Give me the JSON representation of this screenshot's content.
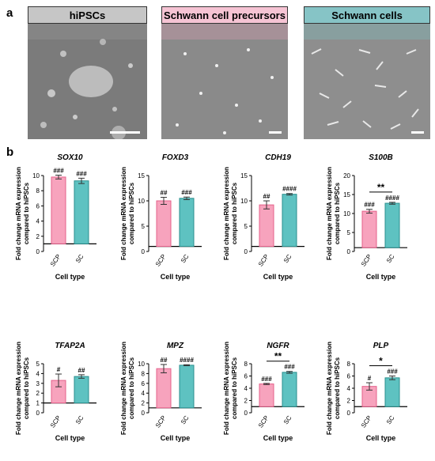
{
  "panel_a_label": "a",
  "panel_b_label": "b",
  "micrographs": [
    {
      "title": "hiPSCs",
      "header_color": "#c6c6c6"
    },
    {
      "title": "Schwann cell precursors",
      "header_color": "#f6c4d4"
    },
    {
      "title": "Schwann cells",
      "header_color": "#86c4c6"
    }
  ],
  "colors": {
    "SCP": "#f7a3bd",
    "SC": "#5ec2c1",
    "SCP_edge": "#e4608a",
    "SC_edge": "#2a8f8e"
  },
  "chart_data": [
    {
      "type": "bar",
      "title": "SOX10",
      "categories": [
        "SCP",
        "SC"
      ],
      "values": [
        9.8,
        9.3
      ],
      "errors": [
        0.25,
        0.35
      ],
      "annotations": [
        "###",
        "###"
      ],
      "ylabel": "Fold change mRNA expression compared to hiPSCs",
      "xlabel": "Cell type",
      "ylim": [
        0,
        10
      ],
      "yticks": [
        0,
        2,
        4,
        6,
        8,
        10
      ],
      "baseline": 1,
      "bracket": null
    },
    {
      "type": "bar",
      "title": "FOXD3",
      "categories": [
        "SCP",
        "SC"
      ],
      "values": [
        10.0,
        10.5
      ],
      "errors": [
        0.7,
        0.25
      ],
      "annotations": [
        "##",
        "###"
      ],
      "ylabel": "Fold change mRNA expression compared to hiPSCs",
      "xlabel": "Cell type",
      "ylim": [
        0,
        15
      ],
      "yticks": [
        0,
        5,
        10,
        15
      ],
      "baseline": 1,
      "bracket": null
    },
    {
      "type": "bar",
      "title": "CDH19",
      "categories": [
        "SCP",
        "SC"
      ],
      "values": [
        9.2,
        11.3
      ],
      "errors": [
        0.8,
        0.15
      ],
      "annotations": [
        "##",
        "####"
      ],
      "ylabel": "Fold change mRNA expression compared to hiPSCs",
      "xlabel": "Cell type",
      "ylim": [
        0,
        15
      ],
      "yticks": [
        0,
        5,
        10,
        15
      ],
      "baseline": 1,
      "bracket": null
    },
    {
      "type": "bar",
      "title": "S100B",
      "categories": [
        "SCP",
        "SC"
      ],
      "values": [
        10.6,
        12.7
      ],
      "errors": [
        0.5,
        0.25
      ],
      "annotations": [
        "###",
        "####"
      ],
      "ylabel": "Fold change mRNA expression compared to hiPSCs",
      "xlabel": "Cell type",
      "ylim": [
        0,
        20
      ],
      "yticks": [
        0,
        5,
        10,
        15,
        20
      ],
      "baseline": 1,
      "bracket": "**"
    },
    {
      "type": "bar",
      "title": "TFAP2A",
      "categories": [
        "SCP",
        "SC"
      ],
      "values": [
        3.3,
        3.7
      ],
      "errors": [
        0.65,
        0.18
      ],
      "annotations": [
        "#",
        "##"
      ],
      "ylabel": "Fold change mRNA expression compared to hiPSCs",
      "xlabel": "Cell type",
      "ylim": [
        0,
        5
      ],
      "yticks": [
        0,
        1,
        2,
        3,
        4,
        5
      ],
      "baseline": 1,
      "bracket": null
    },
    {
      "type": "bar",
      "title": "MPZ",
      "categories": [
        "SCP",
        "SC"
      ],
      "values": [
        9.0,
        9.7
      ],
      "errors": [
        0.85,
        0.1
      ],
      "annotations": [
        "##",
        "####"
      ],
      "ylabel": "Fold change mRNA expression compared to hiPSCs",
      "xlabel": "Cell type",
      "ylim": [
        0,
        10
      ],
      "yticks": [
        0,
        2,
        4,
        6,
        8,
        10
      ],
      "baseline": 1,
      "bracket": null
    },
    {
      "type": "bar",
      "title": "NGFR",
      "categories": [
        "SCP",
        "SC"
      ],
      "values": [
        4.7,
        6.6
      ],
      "errors": [
        0.1,
        0.15
      ],
      "annotations": [
        "###",
        "###"
      ],
      "ylabel": "Fold change mRNA expression compared to hiPSCs",
      "xlabel": "Cell type",
      "ylim": [
        0,
        8
      ],
      "yticks": [
        0,
        2,
        4,
        6,
        8
      ],
      "baseline": 1,
      "bracket": "**"
    },
    {
      "type": "bar",
      "title": "PLP",
      "categories": [
        "SCP",
        "SC"
      ],
      "values": [
        4.3,
        5.7
      ],
      "errors": [
        0.6,
        0.3
      ],
      "annotations": [
        "#",
        "###"
      ],
      "ylabel": "Fold change mRNA expression compared to hiPSCs",
      "xlabel": "Cell type",
      "ylim": [
        0,
        8
      ],
      "yticks": [
        0,
        2,
        4,
        6,
        8
      ],
      "baseline": 1,
      "bracket": "*"
    }
  ]
}
